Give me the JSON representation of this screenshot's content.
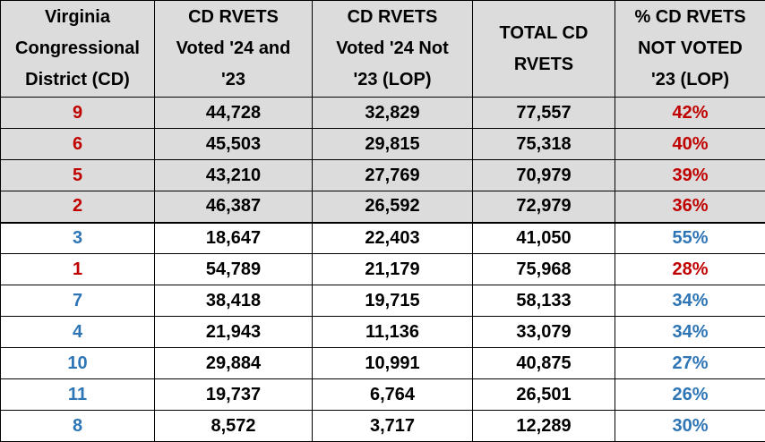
{
  "colors": {
    "red": "#c00000",
    "blue": "#2e75b6",
    "header_bg": "#dcdcdc",
    "row_shade": "#dcdcdc"
  },
  "headers": [
    [
      "Virginia",
      "Congressional",
      "District (CD)"
    ],
    [
      "CD RVETS",
      "Voted '24 and",
      "'23"
    ],
    [
      "CD RVETS",
      "Voted '24 Not",
      "'23 (LOP)"
    ],
    [
      "TOTAL CD",
      "RVETS"
    ],
    [
      "% CD RVETS",
      "NOT VOTED",
      "'23 (LOP)"
    ]
  ],
  "rows": [
    {
      "cd": "9",
      "voted_24_23": "44,728",
      "voted_24_not_23": "32,829",
      "total": "77,557",
      "pct": "42%",
      "party": "red"
    },
    {
      "cd": "6",
      "voted_24_23": "45,503",
      "voted_24_not_23": "29,815",
      "total": "75,318",
      "pct": "40%",
      "party": "red"
    },
    {
      "cd": "5",
      "voted_24_23": "43,210",
      "voted_24_not_23": "27,769",
      "total": "70,979",
      "pct": "39%",
      "party": "red"
    },
    {
      "cd": "2",
      "voted_24_23": "46,387",
      "voted_24_not_23": "26,592",
      "total": "72,979",
      "pct": "36%",
      "party": "red"
    },
    {
      "cd": "3",
      "voted_24_23": "18,647",
      "voted_24_not_23": "22,403",
      "total": "41,050",
      "pct": "55%",
      "party": "blue"
    },
    {
      "cd": "1",
      "voted_24_23": "54,789",
      "voted_24_not_23": "21,179",
      "total": "75,968",
      "pct": "28%",
      "party": "red"
    },
    {
      "cd": "7",
      "voted_24_23": "38,418",
      "voted_24_not_23": "19,715",
      "total": "58,133",
      "pct": "34%",
      "party": "blue"
    },
    {
      "cd": "4",
      "voted_24_23": "21,943",
      "voted_24_not_23": "11,136",
      "total": "33,079",
      "pct": "34%",
      "party": "blue"
    },
    {
      "cd": "10",
      "voted_24_23": "29,884",
      "voted_24_not_23": "10,991",
      "total": "40,875",
      "pct": "27%",
      "party": "blue"
    },
    {
      "cd": "11",
      "voted_24_23": "19,737",
      "voted_24_not_23": "6,764",
      "total": "26,501",
      "pct": "26%",
      "party": "blue"
    },
    {
      "cd": "8",
      "voted_24_23": "8,572",
      "voted_24_not_23": "3,717",
      "total": "12,289",
      "pct": "30%",
      "party": "blue"
    }
  ]
}
